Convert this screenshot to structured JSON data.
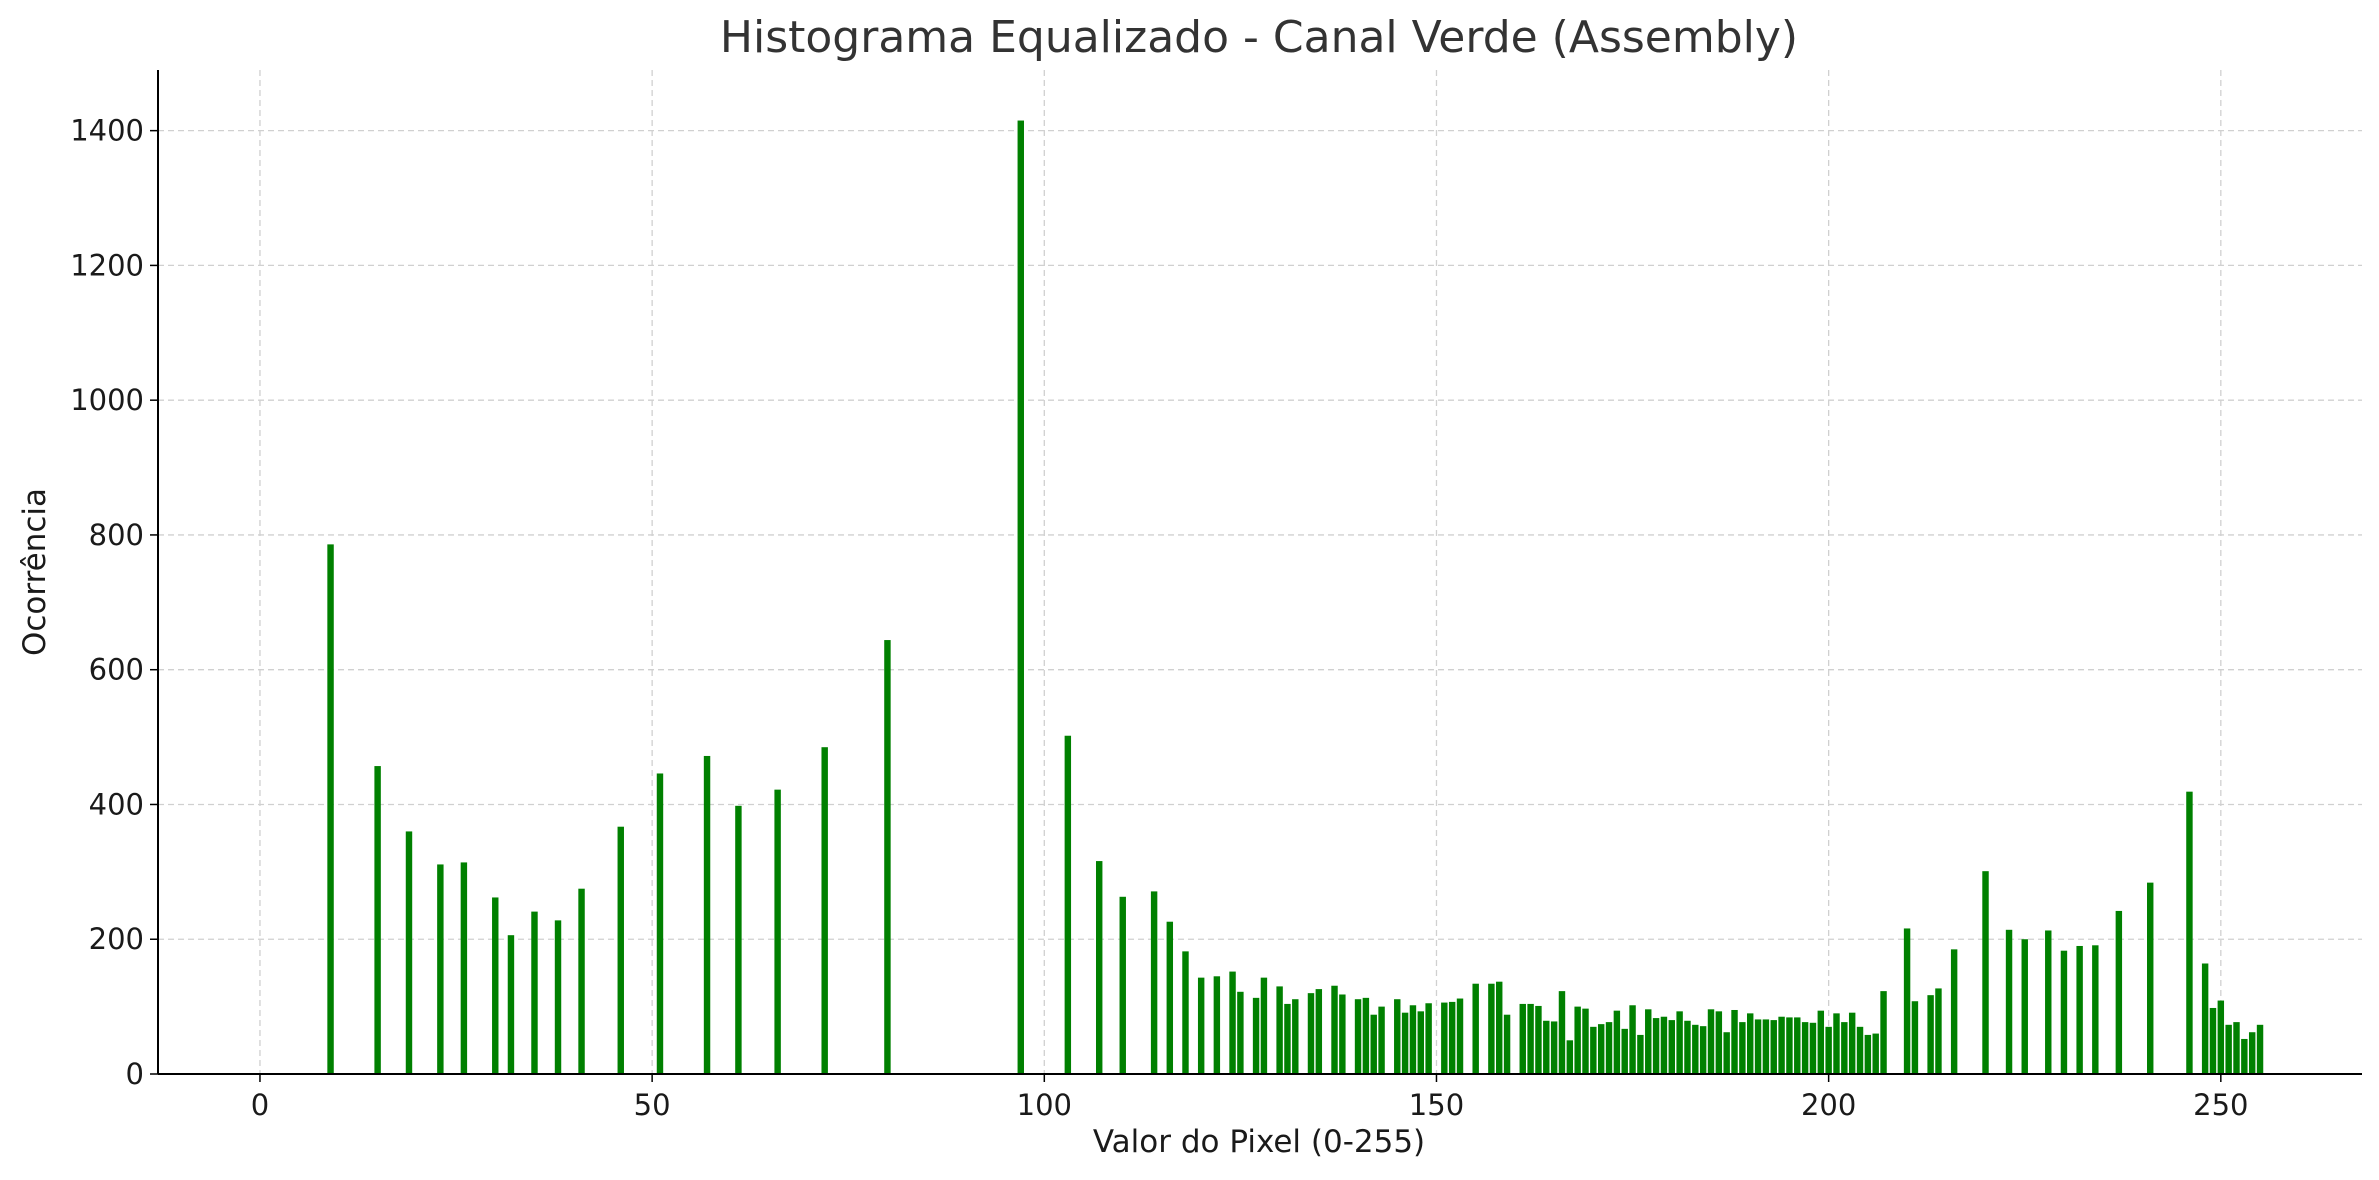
{
  "chart_data": {
    "type": "bar",
    "title": "Histograma Equalizado - Canal Verde (Assembly)",
    "xlabel": "Valor do Pixel (0-255)",
    "ylabel": "Ocorrência",
    "xlim": [
      -13,
      268
    ],
    "ylim": [
      0,
      1490
    ],
    "xticks": [
      0,
      50,
      100,
      150,
      200,
      250
    ],
    "yticks": [
      0,
      200,
      400,
      600,
      800,
      1000,
      1200,
      1400
    ],
    "grid": true,
    "legend": "none",
    "bar_color": "#008000",
    "grid_color": "#d0d0d0",
    "series": [
      {
        "points": [
          [
            9,
            786
          ],
          [
            15,
            457
          ],
          [
            19,
            360
          ],
          [
            23,
            311
          ],
          [
            26,
            314
          ],
          [
            30,
            262
          ],
          [
            32,
            206
          ],
          [
            35,
            241
          ],
          [
            38,
            228
          ],
          [
            41,
            275
          ],
          [
            46,
            367
          ],
          [
            51,
            446
          ],
          [
            57,
            472
          ],
          [
            61,
            398
          ],
          [
            66,
            422
          ],
          [
            72,
            485
          ],
          [
            80,
            644
          ],
          [
            97,
            1415
          ],
          [
            103,
            502
          ],
          [
            107,
            316
          ],
          [
            110,
            263
          ],
          [
            114,
            271
          ],
          [
            116,
            226
          ],
          [
            118,
            182
          ],
          [
            120,
            143
          ],
          [
            122,
            145
          ],
          [
            124,
            152
          ],
          [
            125,
            122
          ],
          [
            127,
            113
          ],
          [
            128,
            143
          ],
          [
            130,
            130
          ],
          [
            131,
            104
          ],
          [
            132,
            111
          ],
          [
            134,
            120
          ],
          [
            135,
            126
          ],
          [
            137,
            131
          ],
          [
            138,
            118
          ],
          [
            140,
            111
          ],
          [
            141,
            113
          ],
          [
            142,
            88
          ],
          [
            143,
            100
          ],
          [
            145,
            111
          ],
          [
            146,
            91
          ],
          [
            147,
            102
          ],
          [
            148,
            93
          ],
          [
            149,
            105
          ],
          [
            151,
            106
          ],
          [
            152,
            107
          ],
          [
            153,
            112
          ],
          [
            155,
            134
          ],
          [
            157,
            134
          ],
          [
            158,
            137
          ],
          [
            159,
            88
          ],
          [
            161,
            104
          ],
          [
            162,
            104
          ],
          [
            163,
            101
          ],
          [
            164,
            79
          ],
          [
            165,
            78
          ],
          [
            166,
            123
          ],
          [
            167,
            50
          ],
          [
            168,
            100
          ],
          [
            169,
            97
          ],
          [
            170,
            70
          ],
          [
            171,
            74
          ],
          [
            172,
            77
          ],
          [
            173,
            94
          ],
          [
            174,
            67
          ],
          [
            175,
            102
          ],
          [
            176,
            58
          ],
          [
            177,
            96
          ],
          [
            178,
            83
          ],
          [
            179,
            85
          ],
          [
            180,
            80
          ],
          [
            181,
            93
          ],
          [
            182,
            79
          ],
          [
            183,
            73
          ],
          [
            184,
            71
          ],
          [
            185,
            96
          ],
          [
            186,
            93
          ],
          [
            187,
            62
          ],
          [
            188,
            95
          ],
          [
            189,
            77
          ],
          [
            190,
            90
          ],
          [
            191,
            81
          ],
          [
            192,
            81
          ],
          [
            193,
            80
          ],
          [
            194,
            85
          ],
          [
            195,
            84
          ],
          [
            196,
            84
          ],
          [
            197,
            77
          ],
          [
            198,
            76
          ],
          [
            199,
            94
          ],
          [
            200,
            70
          ],
          [
            201,
            90
          ],
          [
            202,
            77
          ],
          [
            203,
            91
          ],
          [
            204,
            70
          ],
          [
            205,
            58
          ],
          [
            206,
            60
          ],
          [
            207,
            123
          ],
          [
            210,
            216
          ],
          [
            211,
            108
          ],
          [
            213,
            117
          ],
          [
            214,
            127
          ],
          [
            216,
            185
          ],
          [
            220,
            301
          ],
          [
            223,
            214
          ],
          [
            225,
            200
          ],
          [
            228,
            213
          ],
          [
            230,
            183
          ],
          [
            232,
            190
          ],
          [
            234,
            191
          ],
          [
            237,
            242
          ],
          [
            241,
            284
          ],
          [
            246,
            419
          ],
          [
            248,
            164
          ],
          [
            249,
            98
          ],
          [
            250,
            109
          ],
          [
            251,
            73
          ],
          [
            252,
            77
          ],
          [
            253,
            52
          ],
          [
            254,
            62
          ],
          [
            255,
            73
          ]
        ]
      }
    ]
  }
}
